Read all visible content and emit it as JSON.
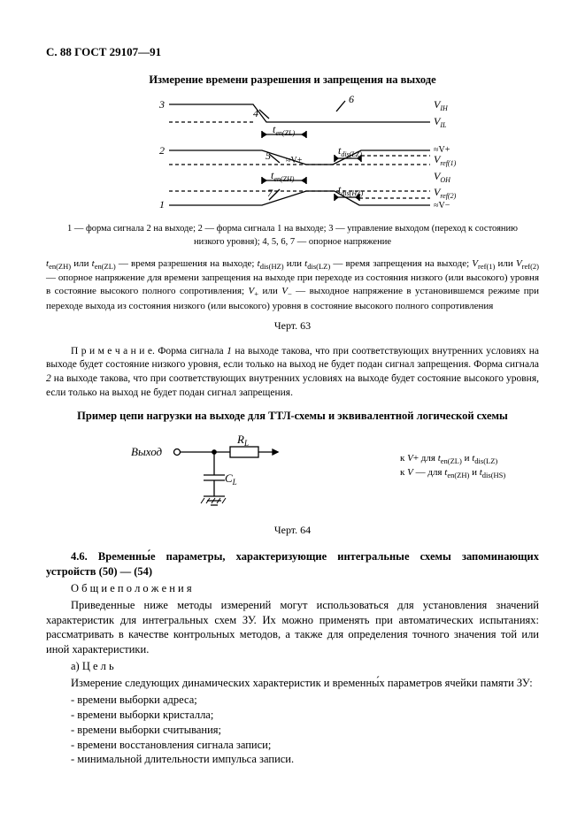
{
  "header": "С. 88 ГОСТ 29107—91",
  "fig63": {
    "title": "Измерение времени разрешения и запрещения на выходе",
    "labels": {
      "n1": "1",
      "n2": "2",
      "n3": "3",
      "n4": "4",
      "n5": "5",
      "n6": "6",
      "n7": "7",
      "t_enZL": "t",
      "t_enZL_sub": "en(ZL)",
      "t_enZH": "t",
      "t_enZH_sub": "en(ZH)",
      "t_disLZ": "t",
      "t_disLZ_sub": "dis(LZ)",
      "t_disHZ": "t",
      "t_disHZ_sub": "dis(HZ)",
      "VIH": "V",
      "VIH_sub": "IH",
      "VIL": "V",
      "VIL_sub": "IL",
      "Vplus": "≈V+",
      "Vplus2": "≈V+",
      "Vref1": "V",
      "Vref1_sub": "ref(1)",
      "VOH": "V",
      "VOH_sub": "OH",
      "Vref2": "V",
      "Vref2_sub": "ref(2)",
      "Vminus": "≈V−"
    },
    "caption_small": "1 — форма сигнала 2 на выходе; 2 — форма сигнала 1 на выходе; 3 — управление выходом (переход к состоянию низкого уровня); 4, 5, 6, 7 — опорное напряжение",
    "caption_block_html": "<span class='ital'>t</span><span class='sub'>en(ZH)</span> или <span class='ital'>t</span><span class='sub'>en(ZL)</span> — время разрешения на выходе; <span class='ital'>t</span><span class='sub'>dis(HZ)</span> или <span class='ital'>t</span><span class='sub'>dis(LZ)</span> — время запрещения на выходе; <span class='ital'>V</span><span class='sub'>ref(1)</span> или <span class='ital'>V</span><span class='sub'>ref(2)</span> — опорное  напряжение  для  времени  запрещения на выходе при переходе из состояния  низкого (или  высокого)  уровня в состояние высокого полного сопротивления; <span class='ital'>V</span><span class='sub'>+</span> или <span class='ital'>V</span><span class='sub'>−</span> — выходное напряжение в установившемся режиме при переходе выхода из состояния низкого (или высокого) уровня в состояние высокого полного сопротивления",
    "number": "Черт. 63"
  },
  "note_html": "П р и м е ч а н и е.  Форма сигнала <span class='ital'>1</span> на выходе такова, что при соответствующих внутренних условиях на выходе будет состояние низкого уровня, если только на выход не будет подан сигнал запрещения. Форма сигнала <span class='ital'>2</span> на выходе такова, что при соответствующих внутренних условиях на выходе будет состояние высокого уровня, если только на выход не будет подан сигнал запрещения.",
  "fig64": {
    "title": "Пример цепи нагрузки на выходе для ТТЛ-схемы и эквивалентной логической схемы",
    "out_label": "Выход",
    "RL": "R",
    "RL_sub": "L",
    "CL": "C",
    "CL_sub": "L",
    "right_line1_html": "к&nbsp;<span class='ital'>V</span>+ для <span class='ital'>t</span><span class='sub'>en(ZL)</span> и <span class='ital'>t</span><span class='sub'>dis(LZ)</span>",
    "right_line2_html": "к&nbsp;<span class='ital'>V</span>&nbsp;— для <span class='ital'>t</span><span class='sub'>en(ZH)</span> и <span class='ital'>t</span><span class='sub'>dis(HS)</span>",
    "number": "Черт. 64"
  },
  "section": {
    "head": "4.6. Временны́е параметры, характеризующие интегральные схемы запоминающих устройств (50) — (54)",
    "general": "О б щ и е   п о л о ж е н и я",
    "p1": "Приведенные ниже методы измерений могут использоваться для установления значений характеристик для интегральных схем ЗУ. Их можно применять при автоматических испытаниях: рассматривать в качестве контрольных методов, а также для определения точного значения той или иной характеристики.",
    "p2a": "а)  Ц е л ь",
    "p3": "Измерение следующих динамических характеристик и временны́х параметров ячейки памяти ЗУ:",
    "items": [
      "- времени выборки адреса;",
      "- времени выборки кристалла;",
      "- времени выборки считывания;",
      "- времени восстановления сигнала записи;",
      "- минимальной длительности импульса записи."
    ]
  },
  "colors": {
    "line": "#000000",
    "bg": "#ffffff"
  }
}
